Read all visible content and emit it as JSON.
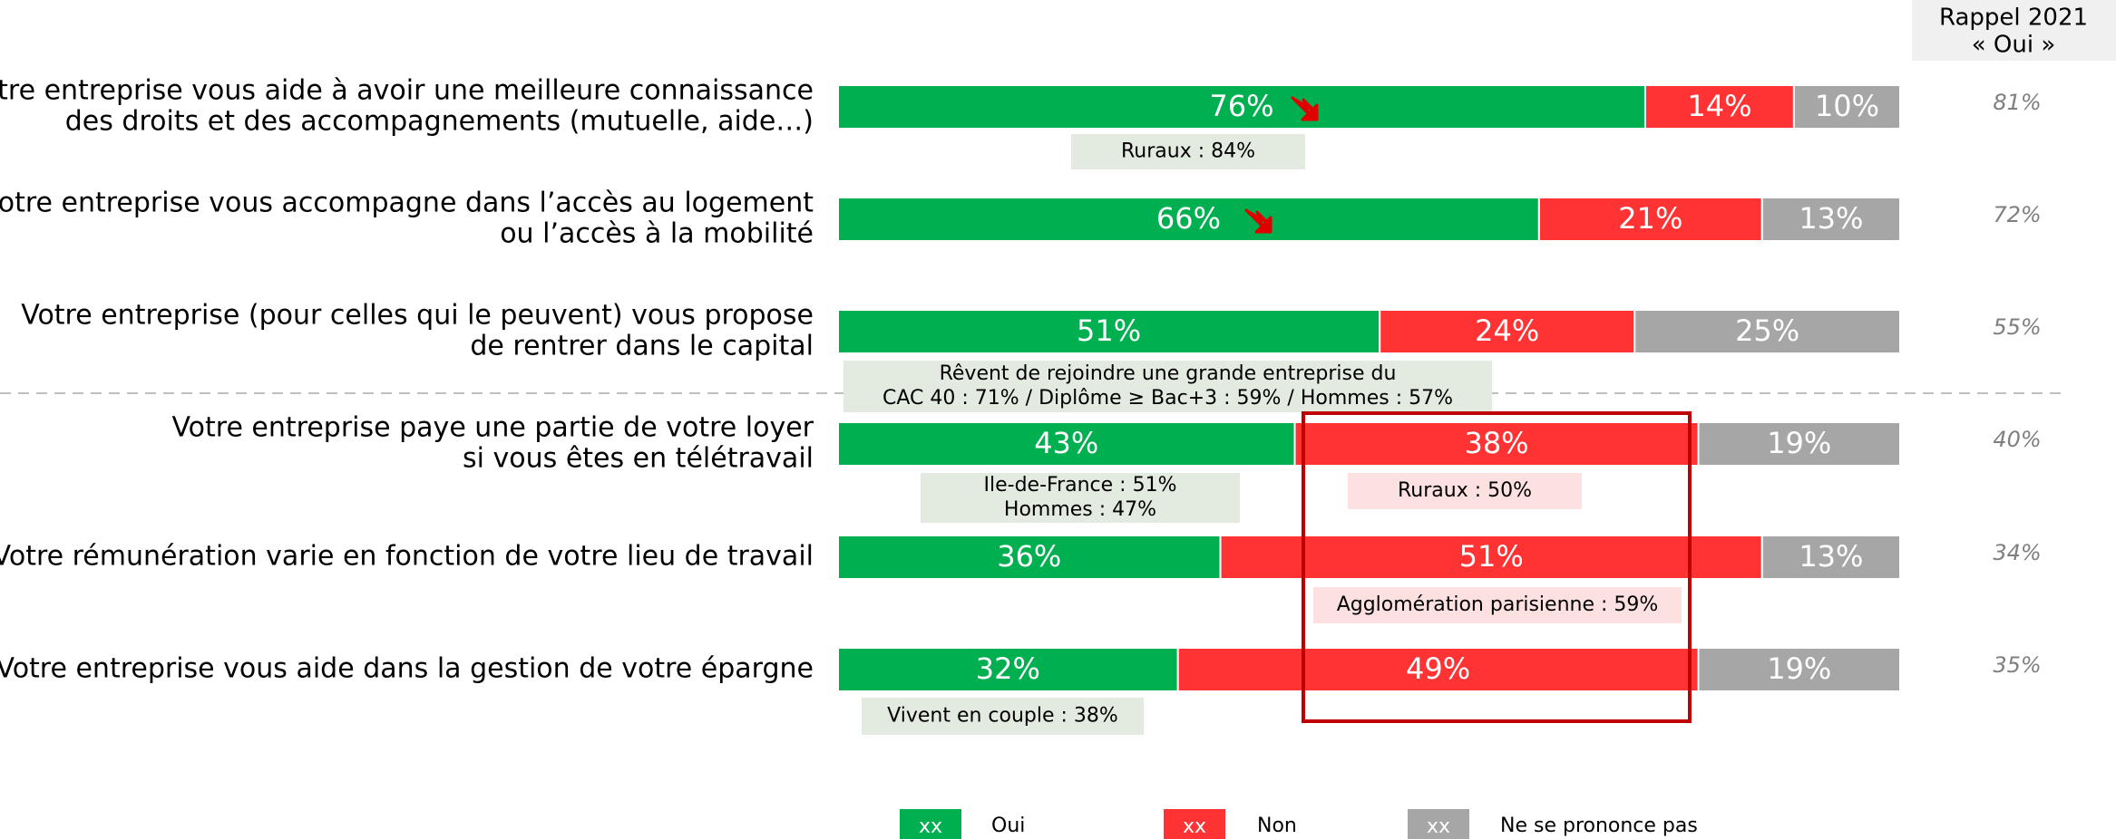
{
  "chart_data": {
    "type": "stacked-bar",
    "orientation": "horizontal",
    "categories": [
      [
        "Votre entreprise vous aide à avoir une meilleure connaissance",
        "des droits et des accompagnements (mutuelle, aide…)"
      ],
      [
        "Votre entreprise vous accompagne dans l’accès au logement",
        "ou l’accès à la mobilité"
      ],
      [
        "Votre entreprise (pour celles qui le peuvent) vous propose",
        "de rentrer dans le capital"
      ],
      [
        "Votre entreprise paye une partie de votre loyer",
        "si vous êtes en télétravail"
      ],
      [
        "Votre rémunération varie en fonction de votre lieu de travail"
      ],
      [
        "Votre entreprise vous aide dans la gestion de votre épargne"
      ]
    ],
    "series": [
      {
        "name": "Oui",
        "color": "#00b050",
        "values": [
          76,
          66,
          51,
          43,
          36,
          32
        ],
        "value_labels": [
          "76%",
          "66%",
          "51%",
          "43%",
          "36%",
          "32%"
        ]
      },
      {
        "name": "Non",
        "color": "#ff3333",
        "values": [
          14,
          21,
          24,
          38,
          51,
          49
        ],
        "value_labels": [
          "14%",
          "21%",
          "24%",
          "38%",
          "51%",
          "49%"
        ]
      },
      {
        "name": "Ne se prononce pas",
        "color": "#a6a6a6",
        "values": [
          10,
          13,
          25,
          19,
          13,
          19
        ],
        "value_labels": [
          "10%",
          "13%",
          "25%",
          "19%",
          "13%",
          "19%"
        ]
      }
    ],
    "recall": {
      "title": [
        "Rappel 2021",
        "« Oui »"
      ],
      "values": [
        81,
        72,
        55,
        40,
        34,
        35
      ],
      "value_labels": [
        "81%",
        "72%",
        "55%",
        "40%",
        "34%",
        "35%"
      ]
    },
    "annotations": [
      {
        "lines": [
          "Ruraux : 84%"
        ],
        "color": "#e3eadf"
      },
      {
        "lines": [
          "Rêvent de rejoindre une grande entreprise du",
          "CAC 40 : 71% / Diplôme ≥ Bac+3 : 59% / Hommes : 57%"
        ],
        "color": "#e3eadf"
      },
      {
        "lines": [
          "Ile-de-France : 51%",
          "Hommes : 47%"
        ],
        "color": "#e3eadf"
      },
      {
        "lines": [
          "Ruraux : 50%"
        ],
        "color": "#fde0e0"
      },
      {
        "lines": [
          "Agglomération parisienne : 59%"
        ],
        "color": "#fde0e0"
      },
      {
        "lines": [
          "Vivent en couple : 38%"
        ],
        "color": "#e3eadf"
      }
    ],
    "legend_sample": "xx"
  }
}
